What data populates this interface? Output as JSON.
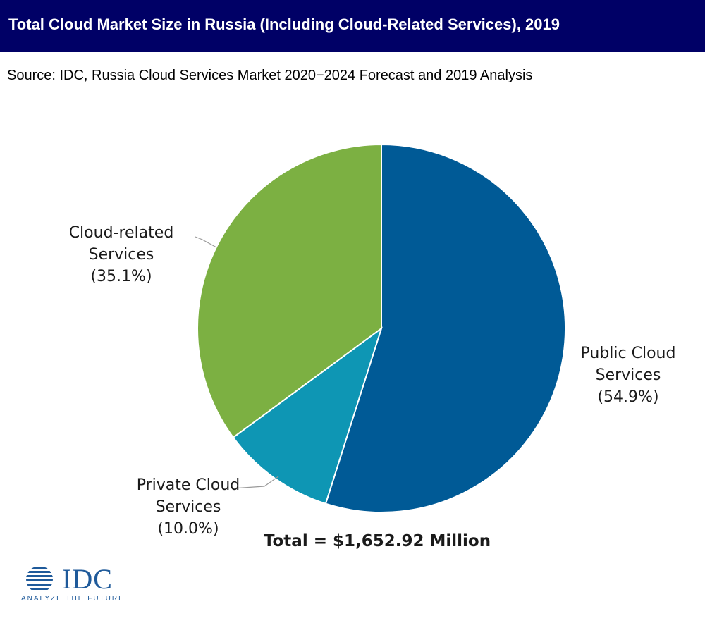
{
  "header": {
    "title": "Total Cloud Market Size in Russia (Including Cloud-Related Services), 2019"
  },
  "source": "Source: IDC, Russia Cloud Services Market 2020−2024 Forecast and 2019 Analysis",
  "logo": {
    "wordmark": "IDC",
    "tagline": "ANALYZE THE FUTURE"
  },
  "colors": {
    "title_bar": "#000066",
    "public": "#005a96",
    "private": "#0e96b4",
    "related": "#7cb042"
  },
  "chart_data": {
    "type": "pie",
    "title": "",
    "total_label": "Total = $1,652.92 Million",
    "slices": [
      {
        "label_lines": [
          "Public Cloud",
          "Services",
          "(54.9%)"
        ],
        "value": 54.9,
        "color": "#005a96"
      },
      {
        "label_lines": [
          "Private Cloud",
          "Services",
          "(10.0%)"
        ],
        "value": 10.0,
        "color": "#0e96b4"
      },
      {
        "label_lines": [
          "Cloud-related",
          "Services",
          "(35.1%)"
        ],
        "value": 35.1,
        "color": "#7cb042"
      }
    ]
  }
}
